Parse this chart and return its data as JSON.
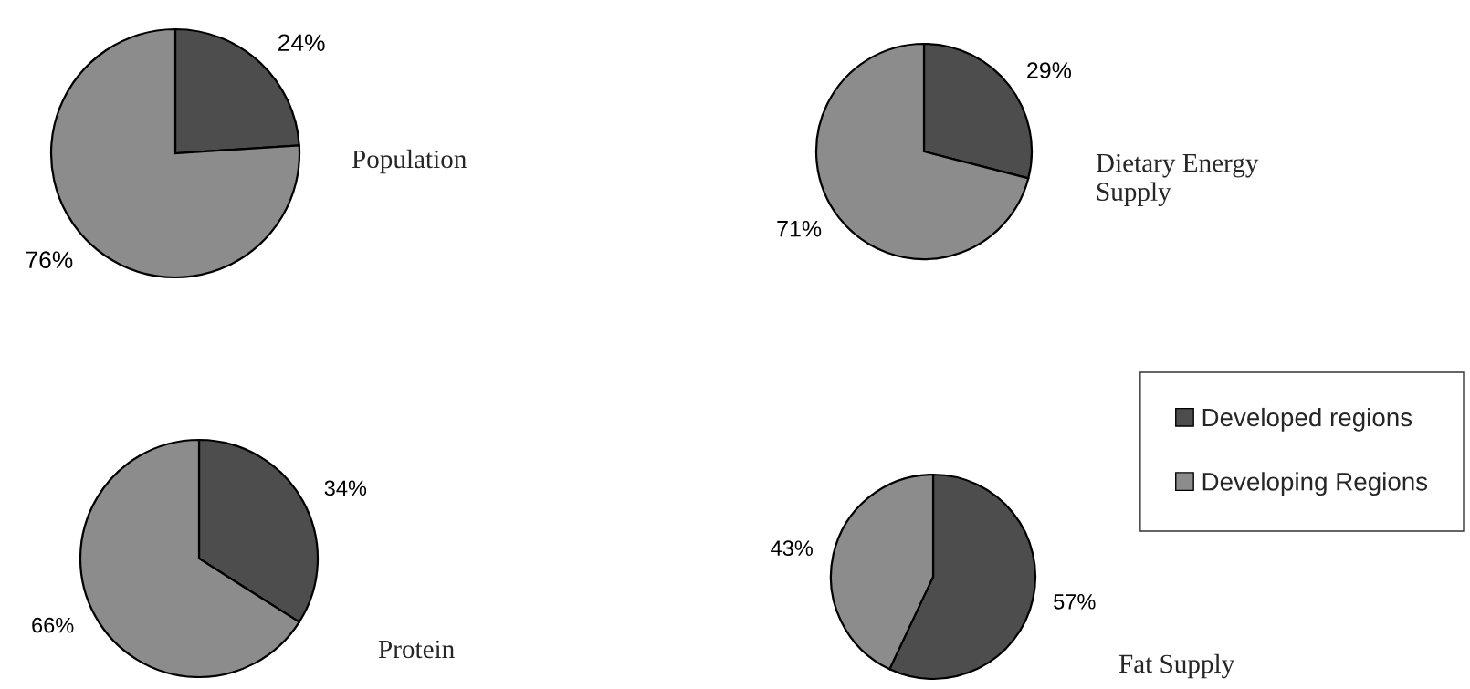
{
  "chart_data": [
    {
      "type": "pie",
      "title": "Population",
      "categories": [
        null,
        null
      ],
      "values": [
        24,
        76
      ],
      "colors": [
        "#4d4d4d",
        "#8c8c8c"
      ],
      "value_labels": [
        "24%",
        "76%"
      ]
    },
    {
      "type": "pie",
      "title": "Dietary Energy\nSupply",
      "categories": [
        null,
        null
      ],
      "values": [
        29,
        71
      ],
      "colors": [
        "#4d4d4d",
        "#8c8c8c"
      ],
      "value_labels": [
        "29%",
        "71%"
      ]
    },
    {
      "type": "pie",
      "title": "Protein",
      "categories": [
        null,
        null
      ],
      "values": [
        34,
        66
      ],
      "colors": [
        "#4d4d4d",
        "#8c8c8c"
      ],
      "value_labels": [
        "34%",
        "66%"
      ]
    },
    {
      "type": "pie",
      "title": "Fat Supply",
      "categories": [
        "Developed regions",
        "Developing Regions"
      ],
      "values": [
        57,
        43
      ],
      "colors": [
        "#4d4d4d",
        "#8c8c8c"
      ],
      "value_labels": [
        "57%",
        "43%"
      ],
      "legend": "top right"
    }
  ]
}
